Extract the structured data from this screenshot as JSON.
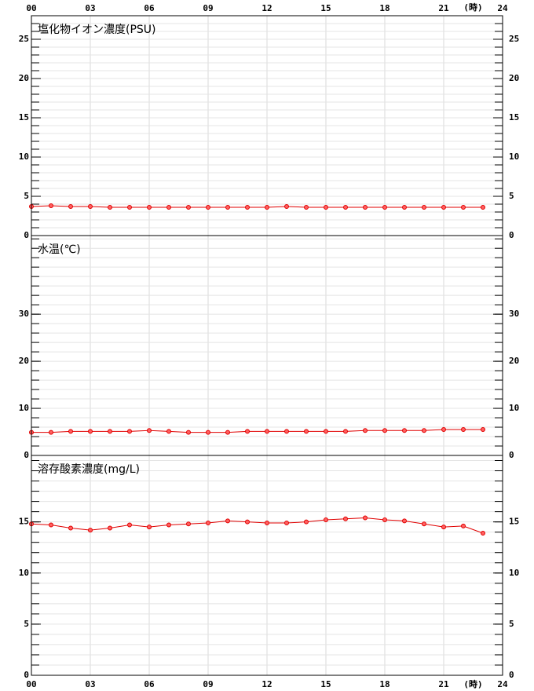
{
  "x_axis": {
    "xlim": [
      0,
      24
    ],
    "xticks": [
      {
        "value": 0,
        "label": "00"
      },
      {
        "value": 3,
        "label": "03"
      },
      {
        "value": 6,
        "label": "06"
      },
      {
        "value": 9,
        "label": "09"
      },
      {
        "value": 12,
        "label": "12"
      },
      {
        "value": 15,
        "label": "15"
      },
      {
        "value": 18,
        "label": "18"
      },
      {
        "value": 21,
        "label": "21"
      },
      24
    ],
    "unit": "(時)"
  },
  "chart_data": [
    {
      "type": "line",
      "title": "塩化物イオン濃度(PSU)",
      "color": "#e00000",
      "ylim": [
        0,
        28
      ],
      "yticks": [
        0,
        5,
        10,
        15,
        20,
        25
      ],
      "minor_step": 1,
      "grid": true,
      "x": [
        0,
        1,
        2,
        3,
        4,
        5,
        6,
        7,
        8,
        9,
        10,
        11,
        12,
        13,
        14,
        15,
        16,
        17,
        18,
        19,
        20,
        21,
        22,
        23
      ],
      "values": [
        3.7,
        3.8,
        3.7,
        3.7,
        3.6,
        3.6,
        3.6,
        3.6,
        3.6,
        3.6,
        3.6,
        3.6,
        3.6,
        3.7,
        3.6,
        3.6,
        3.6,
        3.6,
        3.6,
        3.6,
        3.6,
        3.6,
        3.6,
        3.6
      ]
    },
    {
      "type": "line",
      "title": "水温(℃)",
      "color": "#e00000",
      "ylim": [
        0,
        46.7
      ],
      "yticks": [
        0,
        10,
        20,
        30
      ],
      "minor_step": 2,
      "grid": true,
      "x": [
        0,
        1,
        2,
        3,
        4,
        5,
        6,
        7,
        8,
        9,
        10,
        11,
        12,
        13,
        14,
        15,
        16,
        17,
        18,
        19,
        20,
        21,
        22,
        23
      ],
      "values": [
        4.9,
        4.9,
        5.1,
        5.1,
        5.1,
        5.1,
        5.3,
        5.1,
        4.9,
        4.9,
        4.9,
        5.1,
        5.1,
        5.1,
        5.1,
        5.1,
        5.1,
        5.3,
        5.3,
        5.3,
        5.3,
        5.5,
        5.5,
        5.5
      ]
    },
    {
      "type": "line",
      "title": "溶存酸素濃度(mg/L)",
      "color": "#e00000",
      "ylim": [
        0,
        21.5
      ],
      "yticks": [
        0,
        5,
        10,
        15
      ],
      "minor_step": 1,
      "grid": true,
      "x": [
        0,
        1,
        2,
        3,
        4,
        5,
        6,
        7,
        8,
        9,
        10,
        11,
        12,
        13,
        14,
        15,
        16,
        17,
        18,
        19,
        20,
        21,
        22,
        23
      ],
      "values": [
        14.8,
        14.7,
        14.4,
        14.2,
        14.4,
        14.7,
        14.5,
        14.7,
        14.8,
        14.9,
        15.1,
        15.0,
        14.9,
        14.9,
        15.0,
        15.2,
        15.3,
        15.4,
        15.2,
        15.1,
        14.8,
        14.5,
        14.6,
        13.9
      ]
    }
  ]
}
